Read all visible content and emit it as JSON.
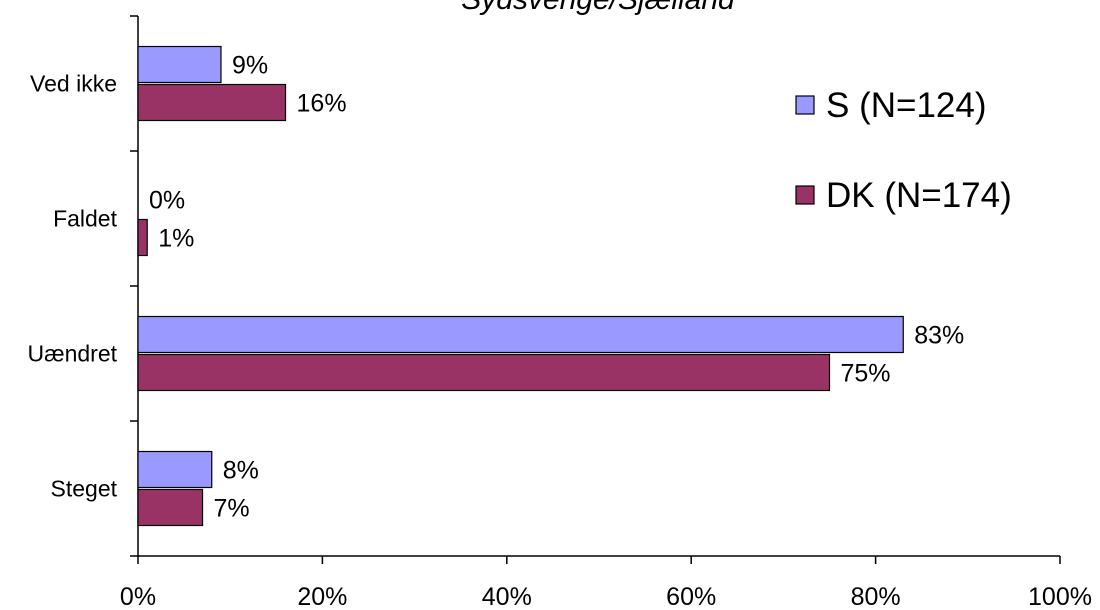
{
  "chart_data": {
    "type": "bar",
    "orientation": "horizontal",
    "title": "Sydsverige/Sjælland",
    "categories": [
      "Ved ikke",
      "Faldet",
      "Uændret",
      "Steget"
    ],
    "series": [
      {
        "name": "S (N=124)",
        "color": "#9999ff",
        "values": [
          9,
          0,
          83,
          8
        ],
        "labels": [
          "9%",
          "0%",
          "83%",
          "8%"
        ]
      },
      {
        "name": "DK (N=174)",
        "color": "#993366",
        "values": [
          16,
          1,
          75,
          7
        ],
        "labels": [
          "16%",
          "1%",
          "75%",
          "7%"
        ]
      }
    ],
    "xlim": [
      0,
      100
    ],
    "xticks": [
      "0%",
      "20%",
      "40%",
      "60%",
      "80%",
      "100%"
    ],
    "legend_position": "right",
    "grid": false
  }
}
